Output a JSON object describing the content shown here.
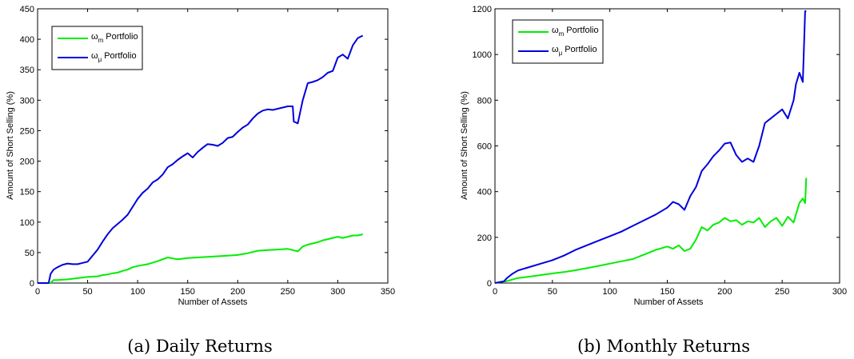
{
  "chart_data": [
    {
      "type": "line",
      "caption": "(a) Daily Returns",
      "xlabel": "Number of Assets",
      "ylabel": "Amount of Short Selling (%)",
      "xlim": [
        0,
        350
      ],
      "ylim": [
        0,
        450
      ],
      "xticks": [
        0,
        50,
        100,
        150,
        200,
        250,
        300,
        350
      ],
      "yticks": [
        0,
        50,
        100,
        150,
        200,
        250,
        300,
        350,
        400,
        450
      ],
      "legend_position": "top-left",
      "series": [
        {
          "symbol": "ω",
          "subscript": "m",
          "suffix": "Portfolio",
          "color": "#00ee00",
          "x": [
            0,
            13,
            16,
            20,
            30,
            40,
            50,
            60,
            65,
            70,
            75,
            80,
            85,
            90,
            95,
            100,
            110,
            120,
            130,
            140,
            150,
            160,
            170,
            180,
            190,
            200,
            210,
            220,
            230,
            240,
            250,
            255,
            260,
            265,
            270,
            275,
            280,
            285,
            290,
            295,
            300,
            305,
            310,
            315,
            320,
            325
          ],
          "y": [
            0,
            0,
            5,
            5,
            6,
            8,
            10,
            11,
            13,
            14,
            16,
            17,
            20,
            22,
            26,
            28,
            31,
            36,
            42,
            39,
            41,
            42,
            43,
            44,
            45,
            46,
            49,
            53,
            54,
            55,
            56,
            54,
            52,
            60,
            63,
            65,
            67,
            70,
            72,
            74,
            76,
            74,
            76,
            78,
            78,
            80
          ]
        },
        {
          "symbol": "ω",
          "subscript": "μ",
          "suffix": "Portfolio",
          "color": "#0000dd",
          "x": [
            0,
            11,
            13,
            16,
            20,
            25,
            30,
            35,
            40,
            45,
            50,
            55,
            60,
            65,
            70,
            75,
            80,
            85,
            90,
            95,
            100,
            105,
            110,
            115,
            120,
            125,
            130,
            135,
            140,
            145,
            150,
            155,
            160,
            165,
            170,
            175,
            180,
            185,
            190,
            195,
            200,
            205,
            210,
            215,
            220,
            225,
            230,
            235,
            240,
            245,
            250,
            255,
            256,
            260,
            265,
            270,
            275,
            280,
            285,
            290,
            295,
            300,
            305,
            310,
            315,
            320,
            325
          ],
          "y": [
            0,
            0,
            15,
            22,
            26,
            30,
            32,
            31,
            31,
            33,
            35,
            45,
            55,
            68,
            80,
            90,
            97,
            104,
            112,
            125,
            138,
            148,
            155,
            165,
            170,
            178,
            190,
            195,
            202,
            208,
            213,
            206,
            215,
            222,
            228,
            227,
            225,
            230,
            238,
            240,
            248,
            255,
            260,
            270,
            278,
            283,
            285,
            284,
            286,
            288,
            290,
            290,
            265,
            262,
            300,
            328,
            330,
            333,
            338,
            345,
            348,
            370,
            375,
            368,
            390,
            402,
            406
          ]
        }
      ]
    },
    {
      "type": "line",
      "caption": "(b) Monthly Returns",
      "xlabel": "Number of Assets",
      "ylabel": "Amount of Short Selling (%)",
      "xlim": [
        0,
        300
      ],
      "ylim": [
        0,
        1200
      ],
      "xticks": [
        0,
        50,
        100,
        150,
        200,
        250,
        300
      ],
      "yticks": [
        0,
        200,
        400,
        600,
        800,
        1000,
        1200
      ],
      "legend_position": "top-left",
      "series": [
        {
          "symbol": "ω",
          "subscript": "m",
          "suffix": "Portfolio",
          "color": "#00ee00",
          "x": [
            0,
            5,
            10,
            15,
            20,
            30,
            40,
            50,
            60,
            70,
            80,
            90,
            100,
            110,
            120,
            130,
            140,
            150,
            155,
            160,
            165,
            170,
            175,
            180,
            185,
            190,
            195,
            200,
            205,
            210,
            215,
            220,
            225,
            230,
            235,
            240,
            245,
            250,
            255,
            260,
            262,
            265,
            268,
            270,
            271
          ],
          "y": [
            0,
            5,
            8,
            15,
            22,
            28,
            35,
            42,
            48,
            56,
            65,
            75,
            85,
            95,
            105,
            125,
            145,
            160,
            150,
            165,
            140,
            150,
            190,
            245,
            230,
            255,
            265,
            285,
            270,
            275,
            255,
            270,
            265,
            285,
            245,
            270,
            285,
            250,
            290,
            265,
            300,
            350,
            370,
            350,
            460
          ]
        },
        {
          "symbol": "ω",
          "subscript": "μ",
          "suffix": "Portfolio",
          "color": "#0000dd",
          "x": [
            0,
            5,
            8,
            10,
            15,
            20,
            30,
            40,
            50,
            60,
            70,
            80,
            90,
            100,
            110,
            120,
            130,
            140,
            150,
            155,
            160,
            165,
            170,
            175,
            180,
            185,
            190,
            195,
            200,
            205,
            210,
            215,
            220,
            225,
            230,
            235,
            240,
            245,
            250,
            255,
            260,
            262,
            265,
            268,
            270,
            271
          ],
          "y": [
            0,
            5,
            8,
            20,
            40,
            55,
            70,
            85,
            100,
            120,
            145,
            165,
            185,
            205,
            225,
            250,
            275,
            300,
            330,
            355,
            345,
            320,
            380,
            420,
            490,
            520,
            555,
            580,
            610,
            615,
            560,
            530,
            545,
            530,
            600,
            700,
            720,
            740,
            760,
            720,
            800,
            870,
            920,
            880,
            1190,
            1190
          ]
        }
      ]
    }
  ]
}
